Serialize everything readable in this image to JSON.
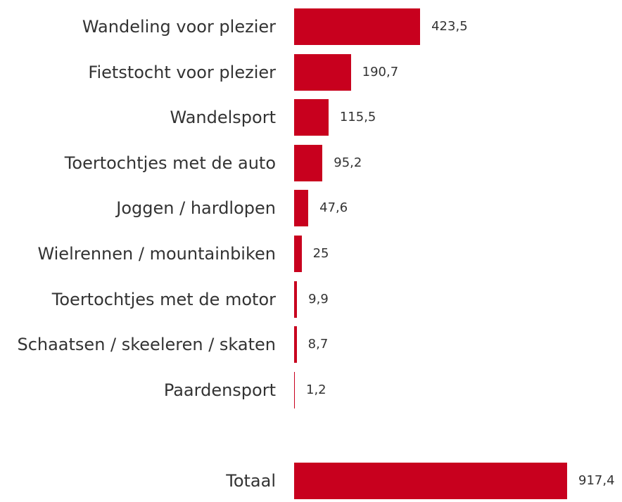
{
  "chart_data": {
    "type": "bar",
    "orientation": "horizontal",
    "categories": [
      "Wandeling voor plezier",
      "Fietstocht voor plezier",
      "Wandelsport",
      "Toertochtjes met de auto",
      "Joggen / hardlopen",
      "Wielrennen / mountainbiken",
      "Toertochtjes met de motor",
      "Schaatsen / skeeleren / skaten",
      "Paardensport",
      "Totaal"
    ],
    "values": [
      423.5,
      190.7,
      115.5,
      95.2,
      47.6,
      25,
      9.9,
      8.7,
      1.2,
      917.4
    ],
    "value_labels": [
      "423,5",
      "190,7",
      "115,5",
      "95,2",
      "47,6",
      "25",
      "9,9",
      "8,7",
      "1,2",
      "917,4"
    ],
    "color": "#c8001e"
  }
}
